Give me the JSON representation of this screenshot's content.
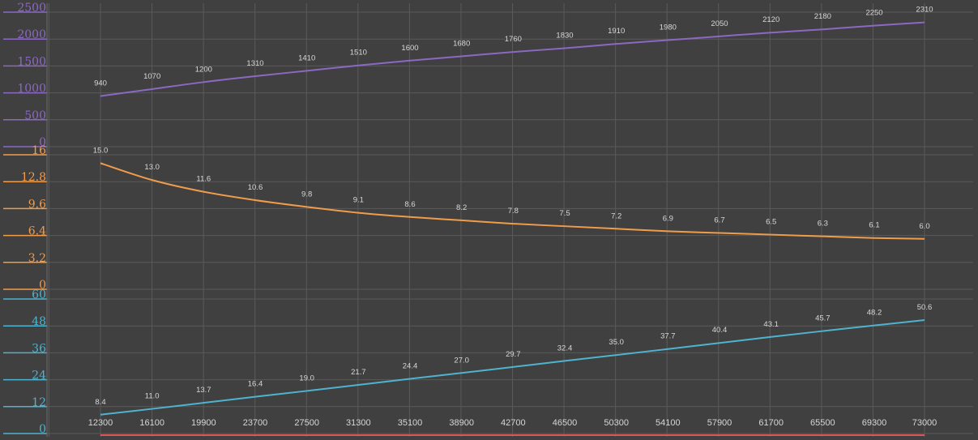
{
  "chart_data": {
    "type": "line",
    "title": "",
    "xlabel": "",
    "x": [
      12300,
      16100,
      19900,
      23700,
      27500,
      31300,
      35100,
      38900,
      42700,
      46500,
      50300,
      54100,
      57900,
      61700,
      65500,
      69300,
      73000
    ],
    "x_tick_labels": [
      "12300",
      "16100",
      "19900",
      "23700",
      "27500",
      "31300",
      "35100",
      "38900",
      "42700",
      "46500",
      "50300",
      "54100",
      "57900",
      "61700",
      "65500",
      "69300",
      "73000"
    ],
    "grid": true,
    "background": "#404040",
    "grid_color": "#5a5a5a",
    "panels": [
      {
        "color": "#8b69c2",
        "ylim": [
          0,
          2500
        ],
        "y_ticks": [
          0,
          500,
          1000,
          1500,
          2000,
          2500
        ],
        "y_tick_labels": [
          "0",
          "500",
          "1000",
          "1500",
          "2000",
          "2500"
        ],
        "values": [
          940,
          1070,
          1200,
          1310,
          1410,
          1510,
          1600,
          1680,
          1760,
          1830,
          1910,
          1980,
          2050,
          2120,
          2180,
          2250,
          2310
        ],
        "data_labels": [
          "940",
          "1070",
          "1200",
          "1310",
          "1410",
          "1510",
          "1600",
          "1680",
          "1760",
          "1830",
          "1910",
          "1980",
          "2050",
          "2120",
          "2180",
          "2250",
          "2310"
        ]
      },
      {
        "color": "#f19c4a",
        "ylim": [
          0,
          16
        ],
        "y_ticks": [
          0,
          3.2,
          6.4,
          9.6,
          12.8,
          16
        ],
        "y_tick_labels": [
          "0",
          "3.2",
          "6.4",
          "9.6",
          "12.8",
          "16"
        ],
        "values": [
          15.0,
          13.0,
          11.6,
          10.6,
          9.8,
          9.1,
          8.6,
          8.2,
          7.8,
          7.5,
          7.2,
          6.9,
          6.7,
          6.5,
          6.3,
          6.1,
          6.0
        ],
        "data_labels": [
          "15.0",
          "13.0",
          "11.6",
          "10.6",
          "9.8",
          "9.1",
          "8.6",
          "8.2",
          "7.8",
          "7.5",
          "7.2",
          "6.9",
          "6.7",
          "6.5",
          "6.3",
          "6.1",
          "6.0"
        ]
      },
      {
        "color": "#4fb3cf",
        "ylim": [
          0,
          60
        ],
        "y_ticks": [
          0,
          12,
          24,
          36,
          48,
          60
        ],
        "y_tick_labels": [
          "0",
          "12",
          "24",
          "36",
          "48",
          "60"
        ],
        "values": [
          8.4,
          11.0,
          13.7,
          16.4,
          19.0,
          21.7,
          24.4,
          27.0,
          29.7,
          32.4,
          35.0,
          37.7,
          40.4,
          43.1,
          45.7,
          48.2,
          50.6
        ],
        "data_labels": [
          "8.4",
          "11.0",
          "13.7",
          "16.4",
          "19.0",
          "21.7",
          "24.4",
          "27.0",
          "29.7",
          "32.4",
          "35.0",
          "37.7",
          "40.4",
          "43.1",
          "45.7",
          "48.2",
          "50.6"
        ]
      }
    ],
    "baseline_color": "#e05555"
  }
}
